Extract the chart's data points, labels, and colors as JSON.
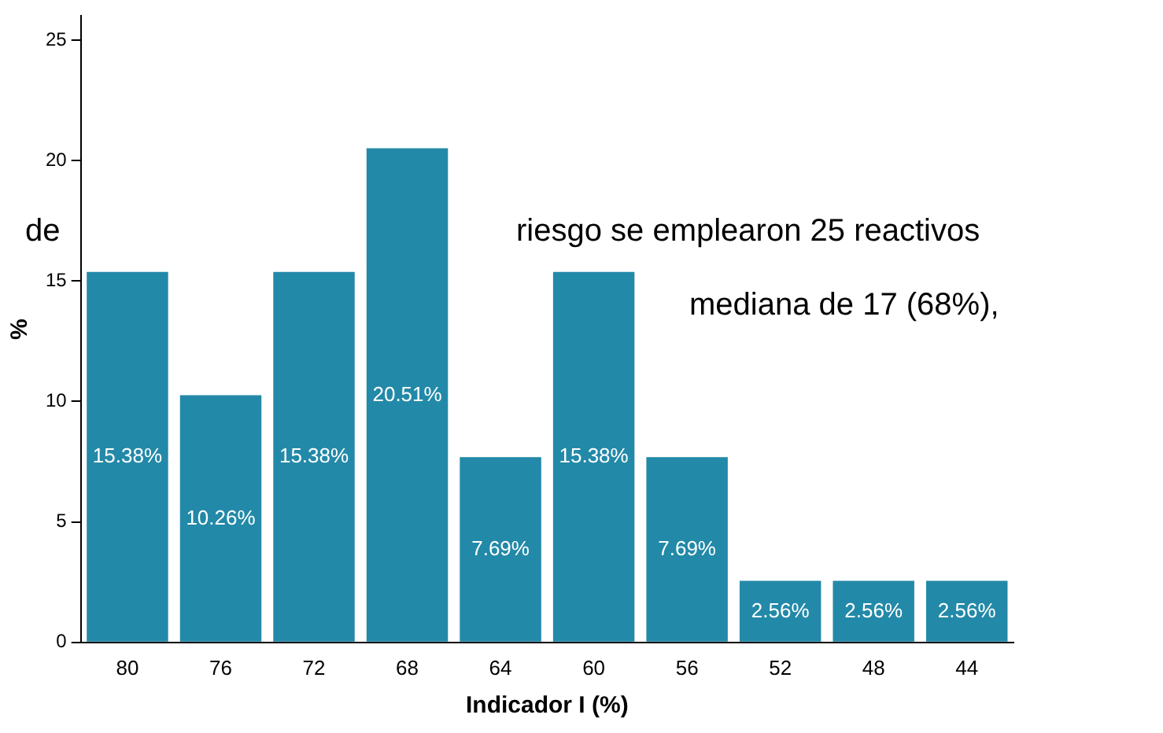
{
  "chart_data": {
    "type": "bar",
    "xlabel": "Indicador I (%)",
    "ylabel": "%",
    "categories": [
      "80",
      "76",
      "72",
      "68",
      "64",
      "60",
      "56",
      "52",
      "48",
      "44"
    ],
    "values": [
      15.38,
      10.26,
      15.38,
      20.51,
      7.69,
      15.38,
      7.69,
      2.56,
      2.56,
      2.56
    ],
    "value_labels": [
      "15.38%",
      "10.26%",
      "15.38%",
      "20.51%",
      "7.69%",
      "15.38%",
      "7.69%",
      "2.56%",
      "2.56%",
      "2.56%"
    ],
    "color": "#2389a8",
    "ylim": [
      0,
      26
    ],
    "yticks": [
      0,
      5,
      10,
      15,
      20,
      25
    ],
    "grid": false,
    "legend": false,
    "annotations": [
      "de",
      "riesgo se emplearon 25 reactivos",
      "mediana de 17 (68%),"
    ]
  }
}
